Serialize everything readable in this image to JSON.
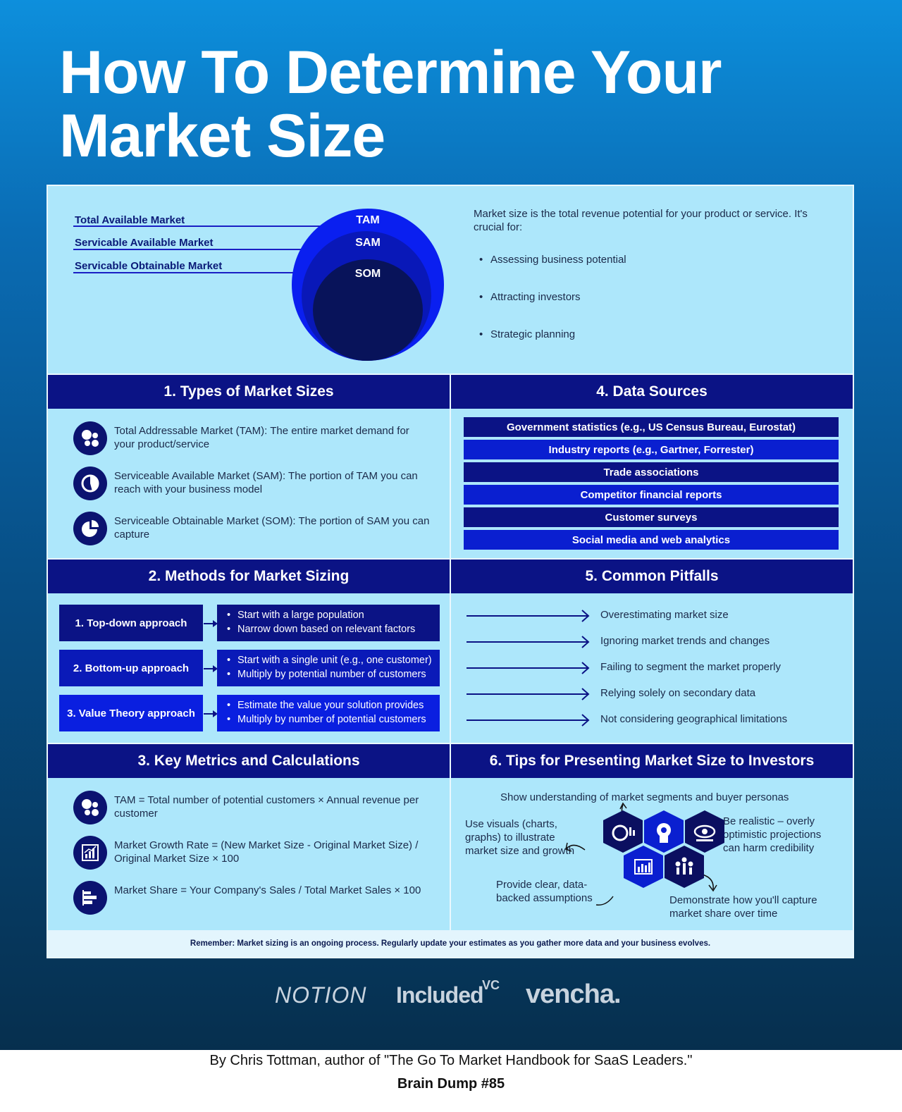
{
  "title": "How To Determine Your Market Size",
  "market_diagram": {
    "labels": [
      "Total Available Market",
      "Servicable Available Market",
      "Servicable Obtainable Market"
    ],
    "circles": [
      "TAM",
      "SAM",
      "SOM"
    ]
  },
  "intro": {
    "text": "Market size is the total revenue potential for your product or service. It's crucial for:",
    "bullets": [
      "Assessing business potential",
      "Attracting investors",
      "Strategic planning"
    ]
  },
  "sections": {
    "types": {
      "heading": "1. Types of Market Sizes",
      "items": [
        {
          "icon": "dots-cluster-icon",
          "text": "Total Addressable Market (TAM): The entire market demand for your product/service"
        },
        {
          "icon": "pie-chart-icon",
          "text": "Serviceable Available Market (SAM): The portion of TAM you can reach with your business model"
        },
        {
          "icon": "pie-slice-icon",
          "text": "Serviceable Obtainable Market (SOM): The portion of SAM you can capture"
        }
      ]
    },
    "data_sources": {
      "heading": "4. Data Sources",
      "items": [
        "Government statistics (e.g., US Census Bureau, Eurostat)",
        "Industry reports (e.g., Gartner, Forrester)",
        "Trade associations",
        "Competitor financial reports",
        "Customer surveys",
        "Social media and web analytics"
      ]
    },
    "methods": {
      "heading": "2. Methods for Market Sizing",
      "items": [
        {
          "label": "1. Top-down approach",
          "details": [
            "Start with a large population",
            "Narrow down based on relevant factors"
          ]
        },
        {
          "label": "2. Bottom-up approach",
          "details": [
            "Start with a single unit (e.g., one customer)",
            "Multiply by potential number of customers"
          ]
        },
        {
          "label": "3. Value Theory approach",
          "details": [
            "Estimate the value your solution provides",
            "Multiply by number of potential customers"
          ]
        }
      ]
    },
    "pitfalls": {
      "heading": "5. Common Pitfalls",
      "items": [
        "Overestimating market size",
        "Ignoring market trends and changes",
        "Failing to segment the market properly",
        "Relying solely on secondary data",
        "Not considering geographical limitations"
      ]
    },
    "metrics": {
      "heading": "3. Key Metrics and Calculations",
      "items": [
        {
          "icon": "dots-cluster-icon",
          "text": "TAM = Total number of potential customers × Annual revenue per customer"
        },
        {
          "icon": "bar-growth-icon",
          "text": "Market Growth Rate = (New Market Size - Original Market Size) / Original Market Size × 100"
        },
        {
          "icon": "horizontal-bars-icon",
          "text": "Market Share = Your Company's Sales / Total Market Sales × 100"
        }
      ]
    },
    "tips": {
      "heading": "6. Tips for Presenting Market Size to Investors",
      "items": {
        "top": "Show understanding of market segments and buyer personas",
        "left": "Use visuals (charts, graphs) to illustrate market size and growth",
        "right": "Be realistic – overly optimistic projections can harm credibility",
        "bottom_left": "Provide clear, data-backed assumptions",
        "bottom_right": "Demonstrate how you'll capture market share over time"
      }
    }
  },
  "remember": "Remember: Market sizing is an ongoing process. Regularly update your estimates as you gather more data and your business evolves.",
  "logos": {
    "notion": "NOTION",
    "included": "Included",
    "included_sup": "VC",
    "vencha": "vencha."
  },
  "footer": {
    "byline": "By Chris Tottman, author of \"The Go To Market Handbook for SaaS Leaders.\"",
    "series": "Brain Dump #85"
  },
  "colors": {
    "navy": "#0b1385",
    "royal": "#0a1fd0",
    "panel": "#ade7fb"
  }
}
